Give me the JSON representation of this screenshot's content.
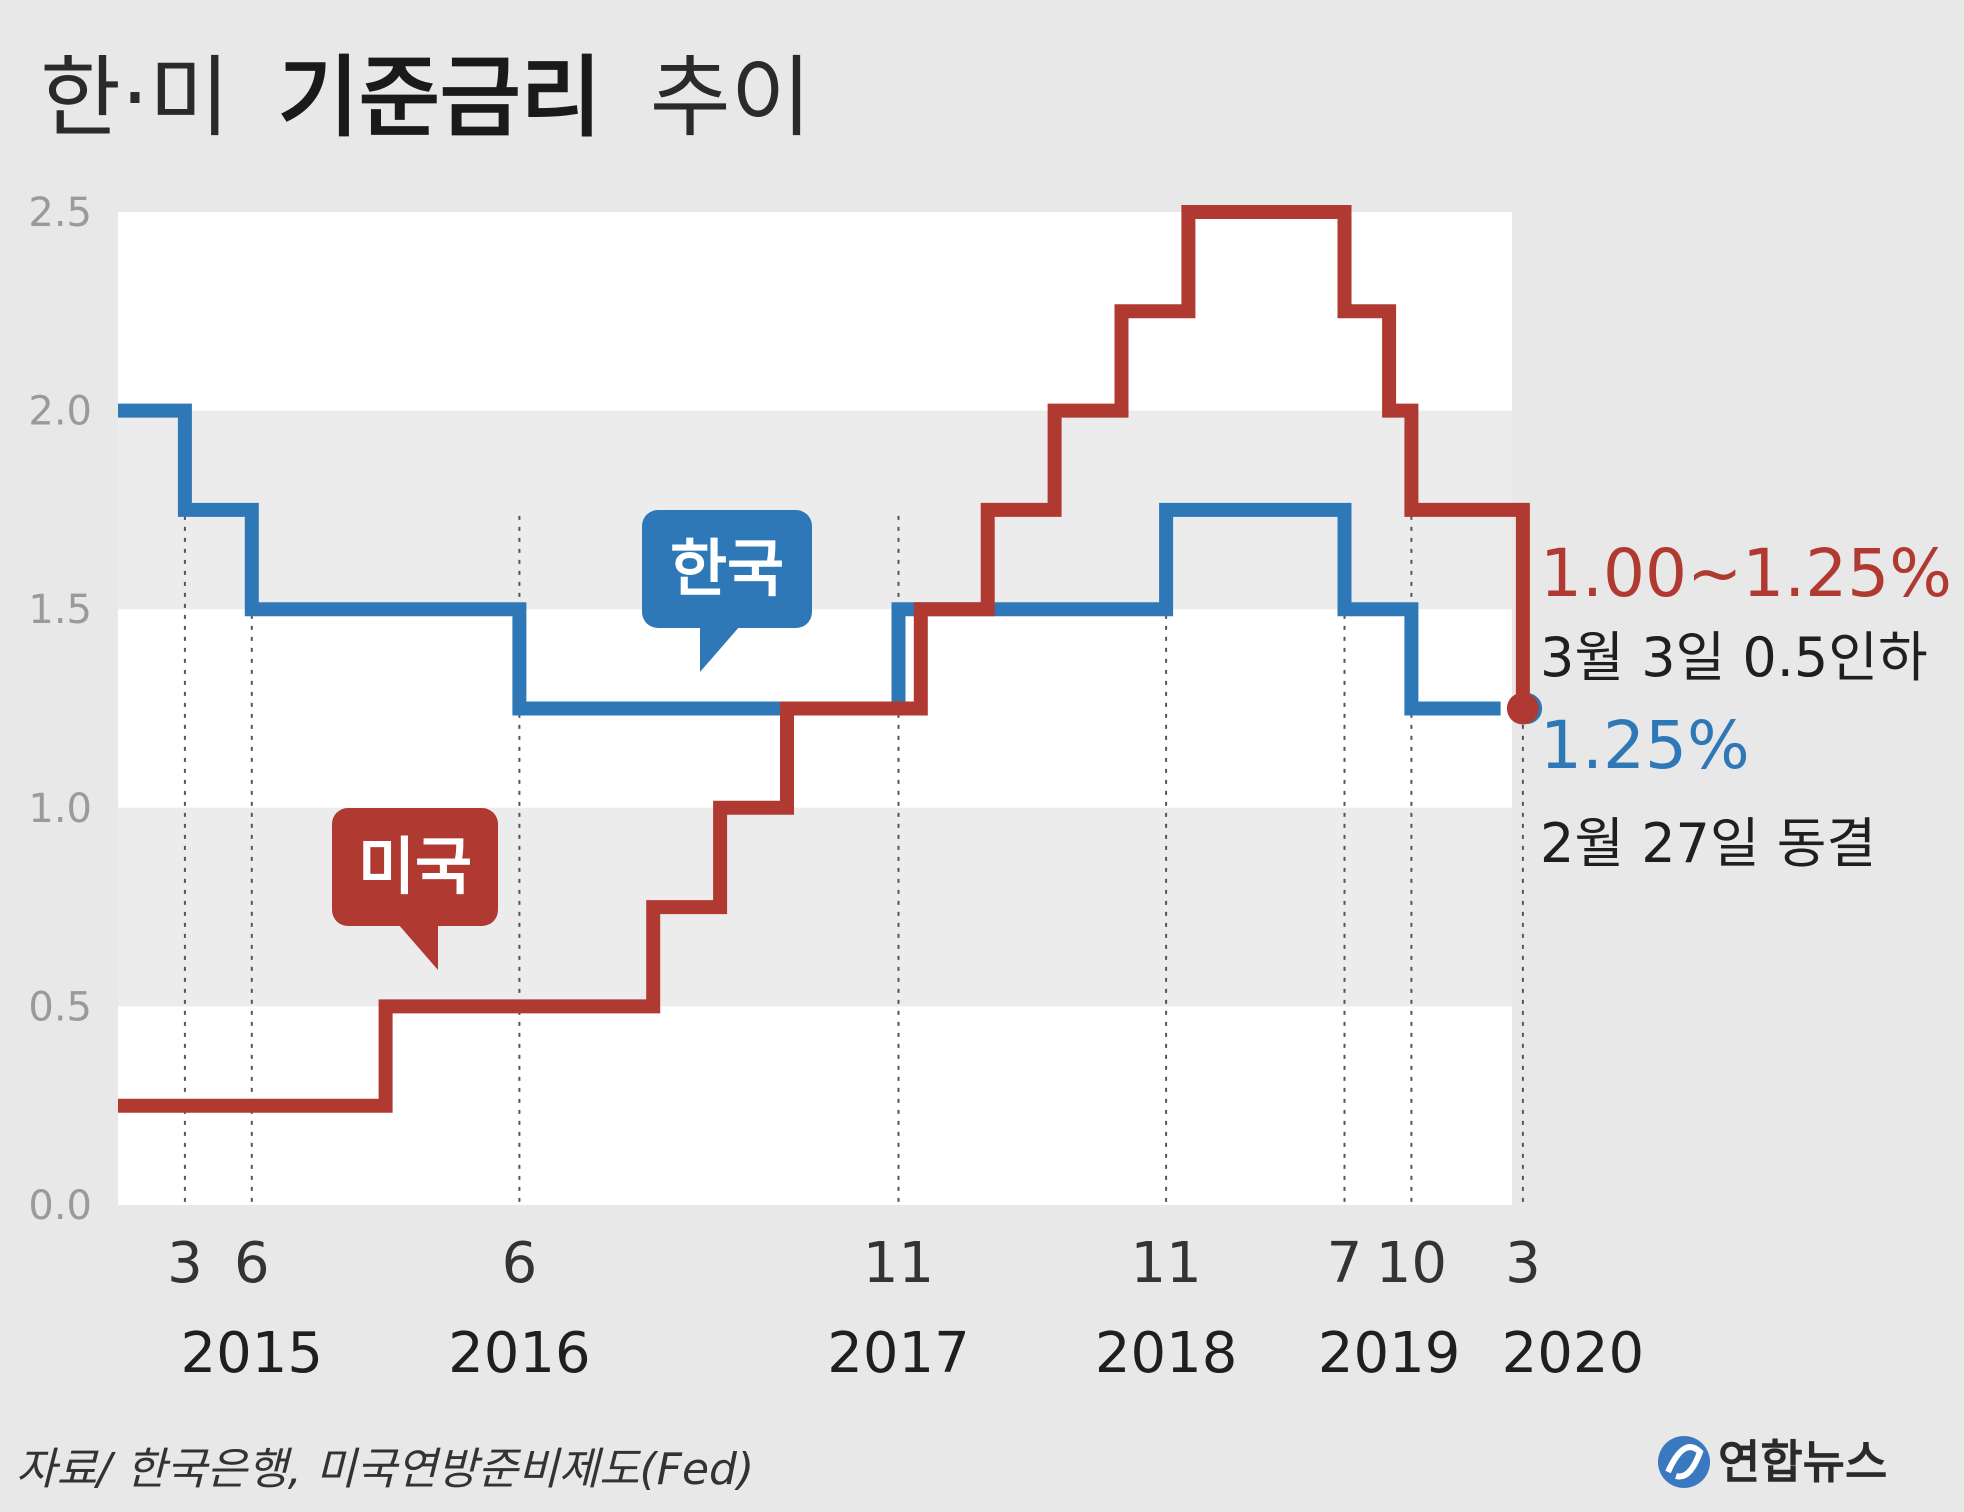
{
  "title": {
    "part1": "한·미",
    "part2": "기준금리",
    "part3": "추이"
  },
  "colors": {
    "korea": "#2f78b8",
    "us": "#b03a32",
    "band_light": "#ffffff",
    "band_dark": "#ececec",
    "background": "#e8e8e8"
  },
  "chart_data": {
    "type": "line",
    "step": true,
    "ylim": [
      0,
      2.5
    ],
    "yticks": [
      "2.5",
      "2.0",
      "1.5",
      "1.0",
      "0.5",
      "0.0"
    ],
    "xlim": [
      "2014-12",
      "2020-03"
    ],
    "x_month_labels": [
      {
        "date": "2015-03",
        "label": "3"
      },
      {
        "date": "2015-06",
        "label": "6"
      },
      {
        "date": "2016-06",
        "label": "6"
      },
      {
        "date": "2017-11",
        "label": "11"
      },
      {
        "date": "2018-11",
        "label": "11"
      },
      {
        "date": "2019-07",
        "label": "7"
      },
      {
        "date": "2019-10",
        "label": "10"
      },
      {
        "date": "2020-03",
        "label": "3"
      }
    ],
    "x_year_labels": [
      {
        "date": "2015-06",
        "label": "2015"
      },
      {
        "date": "2016-06",
        "label": "2016"
      },
      {
        "date": "2017-11",
        "label": "2017"
      },
      {
        "date": "2018-11",
        "label": "2018"
      },
      {
        "date": "2019-09",
        "label": "2019"
      },
      {
        "date": "2020-03",
        "label": "2020"
      }
    ],
    "series": [
      {
        "name": "한국",
        "points": [
          [
            "2014-12",
            2.0
          ],
          [
            "2015-03",
            1.75
          ],
          [
            "2015-06",
            1.5
          ],
          [
            "2016-06",
            1.25
          ],
          [
            "2017-11",
            1.5
          ],
          [
            "2018-11",
            1.75
          ],
          [
            "2019-07",
            1.5
          ],
          [
            "2019-10",
            1.25
          ],
          [
            "2020-02",
            1.25
          ]
        ]
      },
      {
        "name": "미국",
        "points": [
          [
            "2014-12",
            0.25
          ],
          [
            "2015-12",
            0.5
          ],
          [
            "2016-12",
            0.75
          ],
          [
            "2017-03",
            1.0
          ],
          [
            "2017-06",
            1.25
          ],
          [
            "2017-12",
            1.5
          ],
          [
            "2018-03",
            1.75
          ],
          [
            "2018-06",
            2.0
          ],
          [
            "2018-09",
            2.25
          ],
          [
            "2018-12",
            2.5
          ],
          [
            "2019-07",
            2.25
          ],
          [
            "2019-09",
            2.0
          ],
          [
            "2019-10",
            1.75
          ],
          [
            "2020-03",
            1.25
          ]
        ]
      }
    ],
    "annotations": {
      "us_rate": "1.00~1.25%",
      "us_note": "3월 3일 0.5인하",
      "korea_rate": "1.25%",
      "korea_note": "2월 27일 동결"
    }
  },
  "source": "자료/ 한국은행, 미국연방준비제도(Fed)",
  "logo": {
    "text": "연합뉴스",
    "icon": "yonhap-logo-icon"
  }
}
